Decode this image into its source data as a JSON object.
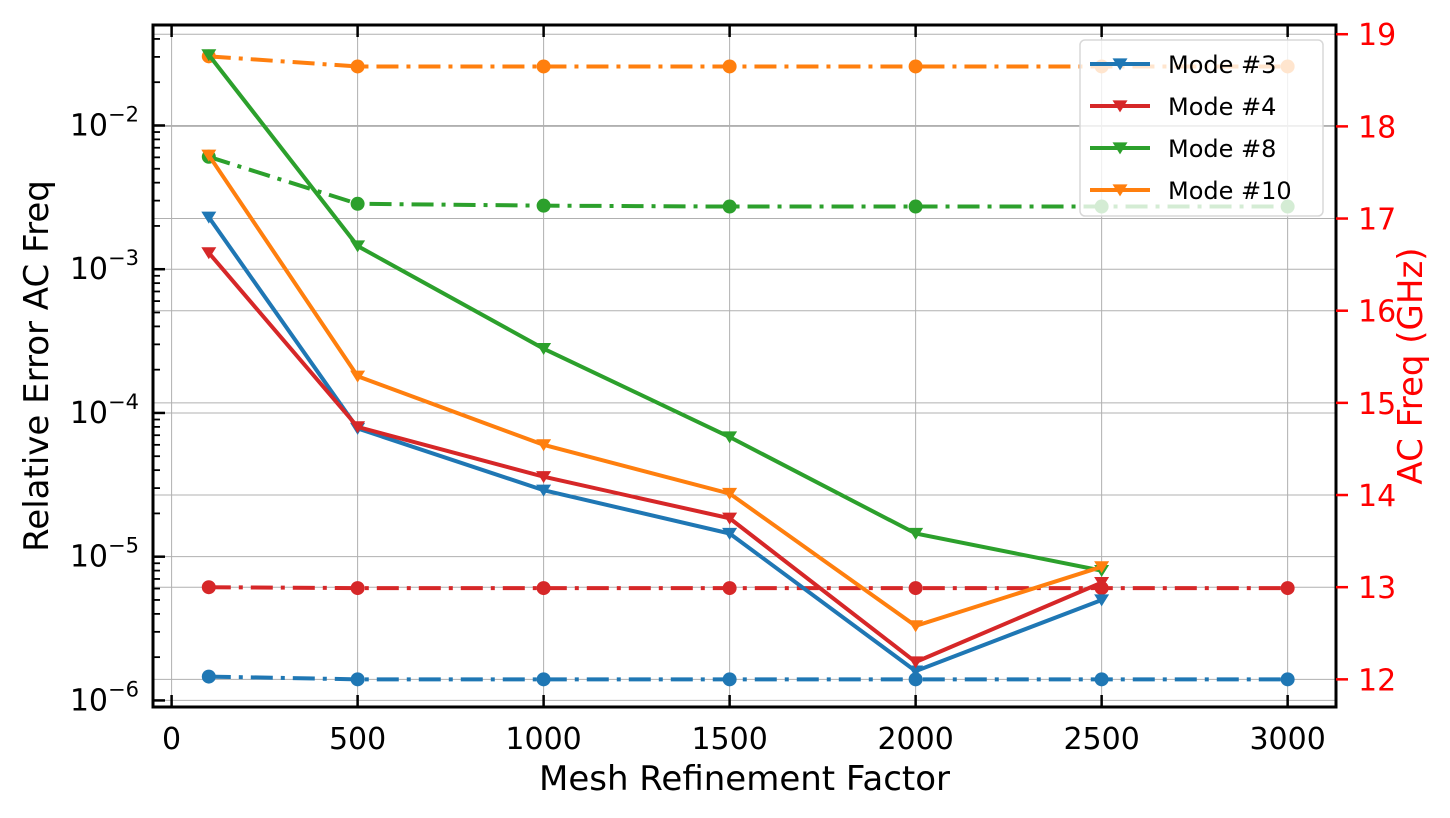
{
  "chart_data": {
    "type": "line",
    "xlabel": "Mesh Refinement Factor",
    "ylabel": "Relative Error AC Freq",
    "y2label": "AC Freq (GHz)",
    "xlim": [
      -50,
      3130
    ],
    "xticks": [
      0,
      500,
      1000,
      1500,
      2000,
      2500,
      3000
    ],
    "ylim": [
      9e-07,
      0.05
    ],
    "yscale": "log",
    "yticks_exp": [
      -6,
      -5,
      -4,
      -3,
      -2
    ],
    "y2lim": [
      11.7,
      19.1
    ],
    "y2ticks": [
      12,
      13,
      14,
      15,
      16,
      17,
      18,
      19
    ],
    "grid": true,
    "legend_position": "top-right",
    "colors": {
      "mode3": "#1f77b4",
      "mode4": "#d62728",
      "mode8": "#2ca02c",
      "mode10": "#ff7f0e",
      "right_axis": "#ff0000"
    },
    "error_series": [
      {
        "name": "Mode #3",
        "color": "#1f77b4",
        "x": [
          100,
          500,
          1000,
          1500,
          2000,
          2500
        ],
        "y": [
          0.0023,
          7.8e-05,
          2.9e-05,
          1.45e-05,
          1.6e-06,
          5e-06
        ]
      },
      {
        "name": "Mode #4",
        "color": "#d62728",
        "x": [
          100,
          500,
          1000,
          1500,
          2000,
          2500
        ],
        "y": [
          0.0013,
          8e-05,
          3.6e-05,
          1.85e-05,
          1.85e-06,
          6.6e-06
        ]
      },
      {
        "name": "Mode #8",
        "color": "#2ca02c",
        "x": [
          100,
          500,
          1000,
          1500,
          2000,
          2500
        ],
        "y": [
          0.031,
          0.00145,
          0.00028,
          6.8e-05,
          1.45e-05,
          8e-06
        ]
      },
      {
        "name": "Mode #10",
        "color": "#ff7f0e",
        "x": [
          100,
          500,
          1000,
          1500,
          2000,
          2500
        ],
        "y": [
          0.0062,
          0.00018,
          6e-05,
          2.75e-05,
          3.3e-06,
          8.5e-06
        ]
      }
    ],
    "freq_series": [
      {
        "color": "#1f77b4",
        "x": [
          100,
          500,
          1000,
          1500,
          2000,
          2500,
          3000
        ],
        "y": [
          12.03,
          12.0,
          12.0,
          12.0,
          12.0,
          12.0,
          12.0
        ]
      },
      {
        "color": "#d62728",
        "x": [
          100,
          500,
          1000,
          1500,
          2000,
          2500,
          3000
        ],
        "y": [
          13.0,
          12.99,
          12.99,
          12.99,
          12.99,
          12.99,
          12.99
        ]
      },
      {
        "color": "#2ca02c",
        "x": [
          100,
          500,
          1000,
          1500,
          2000,
          2500,
          3000
        ],
        "y": [
          17.67,
          17.16,
          17.14,
          17.13,
          17.13,
          17.13,
          17.13
        ]
      },
      {
        "color": "#ff7f0e",
        "x": [
          100,
          500,
          1000,
          1500,
          2000,
          2500,
          3000
        ],
        "y": [
          18.76,
          18.65,
          18.65,
          18.65,
          18.65,
          18.65,
          18.65
        ]
      }
    ]
  }
}
